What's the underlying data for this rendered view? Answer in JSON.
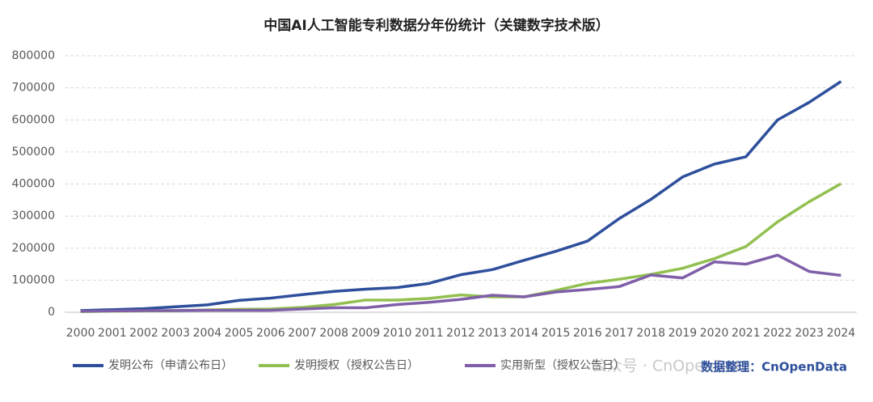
{
  "chart_data": {
    "type": "line",
    "title": "中国AI人工智能专利数据分年份统计（关键数字技术版）",
    "categories": [
      "2000",
      "2001",
      "2002",
      "2003",
      "2004",
      "2005",
      "2006",
      "2007",
      "2008",
      "2009",
      "2010",
      "2011",
      "2012",
      "2013",
      "2014",
      "2015",
      "2016",
      "2017",
      "2018",
      "2019",
      "2020",
      "2021",
      "2022",
      "2023",
      "2024"
    ],
    "series": [
      {
        "name": "发明公布（申请公布日）",
        "color": "#2e4f9c",
        "values": [
          5000,
          8000,
          11000,
          17000,
          23000,
          37000,
          44000,
          55000,
          65000,
          72000,
          77000,
          90000,
          117000,
          133000,
          162000,
          190000,
          222000,
          292000,
          352000,
          422000,
          462000,
          485000,
          600000,
          655000,
          720000
        ]
      },
      {
        "name": "发明授权（授权公告日）",
        "color": "#92c050",
        "values": [
          2000,
          3000,
          4000,
          5000,
          7000,
          9000,
          10000,
          15000,
          24000,
          38000,
          38000,
          43000,
          54000,
          48000,
          48000,
          68000,
          90000,
          103000,
          118000,
          137000,
          167000,
          205000,
          282000,
          345000,
          401000
        ]
      },
      {
        "name": "实用新型（授权公告日）",
        "color": "#7f5fa8",
        "values": [
          3000,
          4000,
          5000,
          5000,
          6000,
          6000,
          6000,
          10000,
          14000,
          14000,
          24000,
          31000,
          40000,
          53000,
          48000,
          63000,
          71000,
          80000,
          116000,
          107000,
          157000,
          150000,
          178000,
          127000,
          115000
        ]
      }
    ],
    "ylim": [
      0,
      800000
    ],
    "yticks": [
      0,
      100000,
      200000,
      300000,
      400000,
      500000,
      600000,
      700000,
      800000
    ],
    "grid": true,
    "legend": "bottom",
    "watermark": "公众号 · CnOpenData",
    "credit": "数据整理：CnOpenData"
  }
}
